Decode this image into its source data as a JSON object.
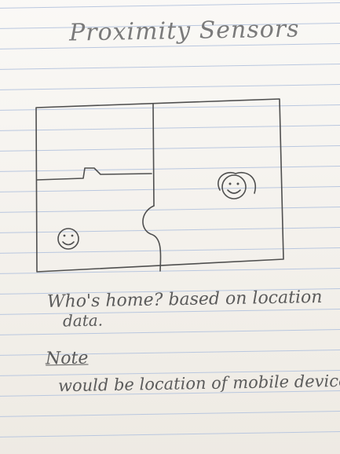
{
  "page": {
    "title": "Proximity Sensors",
    "question": "Who's home? based on location",
    "question_cont": "data.",
    "note_label": "Note",
    "note_text": "would be location of mobile device"
  },
  "colors": {
    "paper": "#f4f1eb",
    "rule_line": "#b9c7df",
    "pencil": "#5b5b5b"
  }
}
